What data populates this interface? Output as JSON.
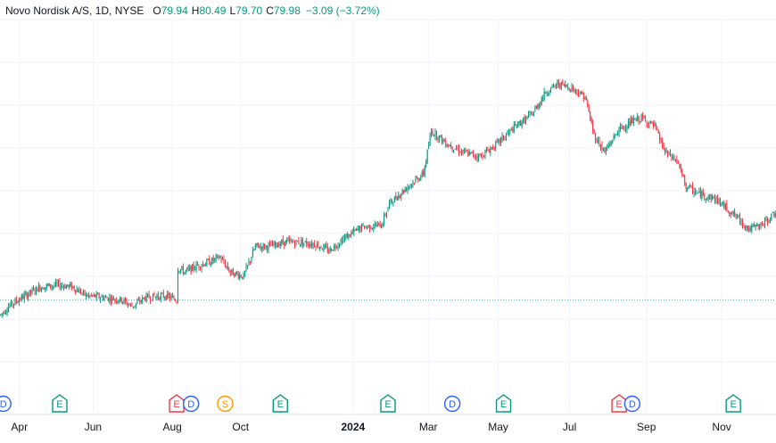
{
  "header": {
    "symbol": "Novo Nordisk A/S, 1D, NYSE",
    "open_label": "O",
    "open": "79.94",
    "high_label": "H",
    "high": "80.49",
    "low_label": "L",
    "low": "79.70",
    "close_label": "C",
    "close": "79.98",
    "change": "−3.09 (−3.72%)"
  },
  "colors": {
    "up": "#089981",
    "down": "#f23645",
    "grid": "#f0f3fa",
    "axis_text": "#131722",
    "event_earnings": "#089981",
    "event_dividend": "#2962ff",
    "event_split": "#ff9800",
    "event_earnings_red": "#f23645"
  },
  "chart_data": {
    "type": "candlestick",
    "title": "",
    "xlabel": "",
    "ylabel": "",
    "grid": true,
    "x_ticks": [
      "Apr",
      "Jun",
      "Aug",
      "Oct",
      "2024",
      "Mar",
      "May",
      "Jul",
      "Sep",
      "Nov"
    ],
    "baseline_value": 49.5,
    "ylim": [
      30,
      115
    ],
    "events": [
      {
        "type": "dividend",
        "label": "D",
        "date_index": 2
      },
      {
        "type": "earnings",
        "label": "E",
        "date_index": 45
      },
      {
        "type": "earnings",
        "label": "E",
        "date_index": 134
      },
      {
        "type": "dividend",
        "label": "D",
        "date_index": 145
      },
      {
        "type": "split",
        "label": "S",
        "date_index": 171
      },
      {
        "type": "earnings",
        "label": "E",
        "date_index": 213
      },
      {
        "type": "earnings",
        "label": "E",
        "date_index": 295
      },
      {
        "type": "dividend",
        "label": "D",
        "date_index": 344
      },
      {
        "type": "earnings",
        "label": "E",
        "date_index": 383
      },
      {
        "type": "earnings",
        "label": "E",
        "date_index": 471
      },
      {
        "type": "dividend",
        "label": "D",
        "date_index": 481
      },
      {
        "type": "earnings",
        "label": "E",
        "date_index": 558
      }
    ],
    "series": [
      {
        "trend_points": [
          [
            0,
            46
          ],
          [
            6,
            48
          ],
          [
            16,
            50
          ],
          [
            30,
            52.5
          ],
          [
            45,
            53
          ],
          [
            55,
            52.5
          ],
          [
            65,
            50.5
          ],
          [
            80,
            50
          ],
          [
            92,
            49.5
          ],
          [
            100,
            48
          ],
          [
            110,
            50
          ],
          [
            125,
            50.5
          ],
          [
            134,
            49.5
          ],
          [
            135,
            57
          ],
          [
            140,
            56
          ],
          [
            150,
            57.5
          ],
          [
            160,
            58.5
          ],
          [
            167,
            59.5
          ],
          [
            175,
            56
          ],
          [
            185,
            55
          ],
          [
            194,
            62
          ],
          [
            205,
            62
          ],
          [
            215,
            63
          ],
          [
            228,
            63
          ],
          [
            240,
            62.5
          ],
          [
            250,
            61
          ],
          [
            262,
            64
          ],
          [
            275,
            66.5
          ],
          [
            290,
            67
          ],
          [
            296,
            72
          ],
          [
            310,
            76
          ],
          [
            322,
            79
          ],
          [
            328,
            89
          ],
          [
            340,
            86
          ],
          [
            352,
            84
          ],
          [
            365,
            83
          ],
          [
            378,
            86
          ],
          [
            392,
            90
          ],
          [
            405,
            93
          ],
          [
            415,
            98
          ],
          [
            425,
            100
          ],
          [
            435,
            99
          ],
          [
            445,
            97
          ],
          [
            452,
            88
          ],
          [
            460,
            84
          ],
          [
            470,
            89
          ],
          [
            480,
            91
          ],
          [
            488,
            92
          ],
          [
            498,
            90
          ],
          [
            506,
            84
          ],
          [
            515,
            82
          ],
          [
            522,
            76
          ],
          [
            530,
            74.5
          ],
          [
            545,
            73
          ],
          [
            560,
            69
          ],
          [
            570,
            66
          ],
          [
            580,
            67
          ],
          [
            590,
            70
          ]
        ],
        "last_close": 79.98
      }
    ]
  }
}
